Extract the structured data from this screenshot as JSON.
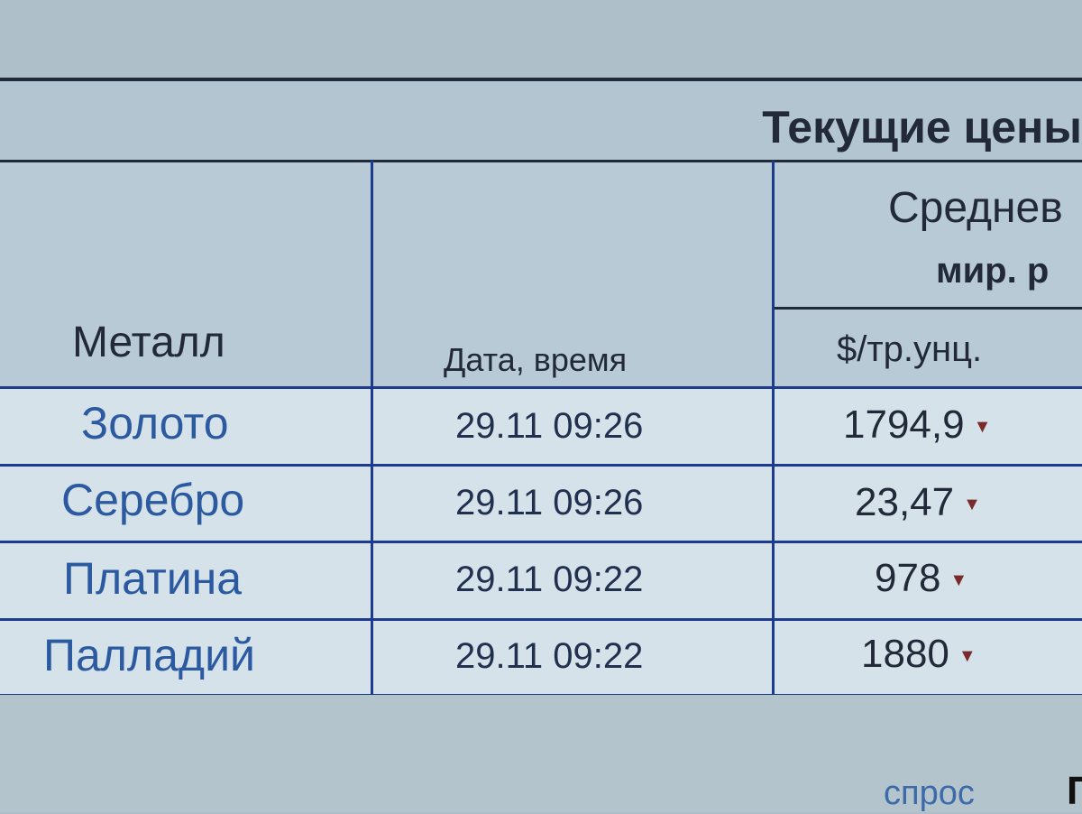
{
  "table": {
    "title": "Текущие цены",
    "headers": {
      "metal": "Металл",
      "datetime": "Дата, время",
      "avg_line1": "Среднев",
      "avg_line2": "мир. р",
      "unit": "$/тр.унц."
    },
    "rows": [
      {
        "metal": "Золото",
        "datetime": "29.11 09:26",
        "price": "1794,9",
        "trend": "down"
      },
      {
        "metal": "Серебро",
        "datetime": "29.11 09:26",
        "price": "23,47",
        "trend": "down"
      },
      {
        "metal": "Платина",
        "datetime": "29.11 09:22",
        "price": "978",
        "trend": "down"
      },
      {
        "metal": "Палладий",
        "datetime": "29.11 09:22",
        "price": "1880",
        "trend": "down"
      }
    ],
    "trend_symbol": "▼",
    "trend_color": "#7a2a2a"
  },
  "footer": {
    "link": "спрос",
    "partial": "П"
  }
}
